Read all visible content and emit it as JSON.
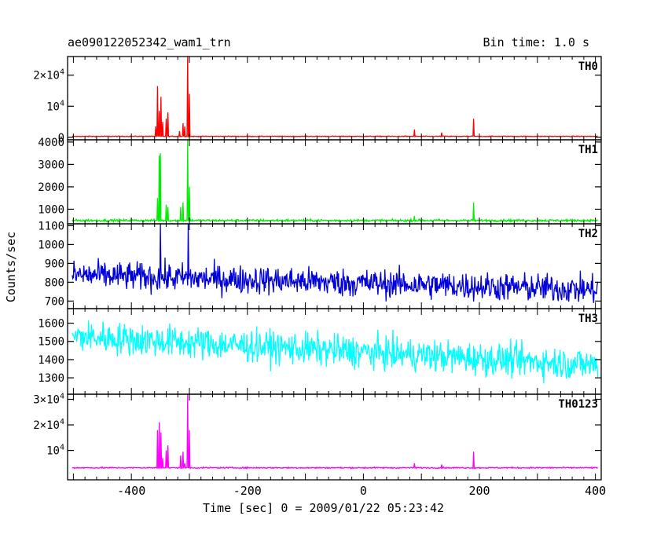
{
  "header": {
    "title": "ae090122052342_wam1_trn",
    "bin_time": "Bin time: 1.0 s"
  },
  "axes": {
    "xlabel": "Time [sec] 0 = 2009/01/22 05:23:42",
    "ylabel": "Counts/sec"
  },
  "chart_data": {
    "type": "line",
    "title": "ae090122052342_wam1_trn",
    "subtitle": "Bin time: 1.0 s",
    "xlabel": "Time [sec] 0 = 2009/01/22 05:23:42",
    "ylabel": "Counts/sec",
    "xlim": [
      -510,
      410
    ],
    "x_ticks": [
      -400,
      -200,
      0,
      200,
      400
    ],
    "legend": "none",
    "grid": false,
    "panels": [
      {
        "name": "TH0",
        "color": "#ff0000",
        "ylim": [
          -800,
          26000
        ],
        "ticks": [
          {
            "v": 0,
            "t": "0"
          },
          {
            "v": 10000,
            "t": "10^4"
          },
          {
            "v": 20000,
            "t": "2×10^4"
          }
        ],
        "baseline": 300,
        "noise": 60,
        "trend": 0,
        "spikes": [
          [
            -358,
            3500
          ],
          [
            -355,
            16500
          ],
          [
            -352,
            8500
          ],
          [
            -349,
            13000
          ],
          [
            -346,
            5000
          ],
          [
            -340,
            6000
          ],
          [
            -337,
            8000
          ],
          [
            -317,
            2000
          ],
          [
            -311,
            4500
          ],
          [
            -308,
            3500
          ],
          [
            -303,
            27000
          ],
          [
            -300,
            14000
          ],
          [
            88,
            2500
          ],
          [
            135,
            1500
          ],
          [
            190,
            6000
          ]
        ]
      },
      {
        "name": "TH1",
        "color": "#00ee00",
        "ylim": [
          350,
          4100
        ],
        "ticks": [
          {
            "v": 1000,
            "t": "1000"
          },
          {
            "v": 2000,
            "t": "2000"
          },
          {
            "v": 3000,
            "t": "3000"
          },
          {
            "v": 4000,
            "t": "4000"
          }
        ],
        "baseline": 500,
        "noise": 25,
        "trend": 0,
        "spikes": [
          [
            -355,
            1500
          ],
          [
            -352,
            3400
          ],
          [
            -350,
            3500
          ],
          [
            -340,
            1200
          ],
          [
            -337,
            1100
          ],
          [
            -315,
            1100
          ],
          [
            -311,
            1300
          ],
          [
            -303,
            4100
          ],
          [
            -300,
            2000
          ],
          [
            88,
            700
          ],
          [
            190,
            1300
          ]
        ]
      },
      {
        "name": "TH2",
        "color": "#0000dd",
        "ylim": [
          660,
          1110
        ],
        "ticks": [
          {
            "v": 700,
            "t": "700"
          },
          {
            "v": 800,
            "t": "800"
          },
          {
            "v": 900,
            "t": "900"
          },
          {
            "v": 1000,
            "t": "1000"
          },
          {
            "v": 1100,
            "t": "1100"
          }
        ],
        "baseline": 840,
        "noise": 38,
        "trend": -80,
        "spikes": [
          [
            -350,
            1110
          ],
          [
            -302,
            1110
          ]
        ]
      },
      {
        "name": "TH3",
        "color": "#00ffff",
        "ylim": [
          1210,
          1680
        ],
        "ticks": [
          {
            "v": 1300,
            "t": "1300"
          },
          {
            "v": 1400,
            "t": "1400"
          },
          {
            "v": 1500,
            "t": "1500"
          },
          {
            "v": 1600,
            "t": "1600"
          }
        ],
        "baseline": 1530,
        "noise": 45,
        "trend": -160,
        "spikes": []
      },
      {
        "name": "TH0123",
        "color": "#ff00ff",
        "ylim": [
          -1500,
          32000
        ],
        "ticks": [
          {
            "v": 10000,
            "t": "10^4"
          },
          {
            "v": 20000,
            "t": "2×10^4"
          },
          {
            "v": 30000,
            "t": "3×10^4"
          }
        ],
        "baseline": 3200,
        "noise": 120,
        "trend": 0,
        "spikes": [
          [
            -355,
            18000
          ],
          [
            -352,
            21000
          ],
          [
            -349,
            17000
          ],
          [
            -346,
            7000
          ],
          [
            -340,
            10000
          ],
          [
            -337,
            12000
          ],
          [
            -315,
            8000
          ],
          [
            -311,
            9500
          ],
          [
            -308,
            5000
          ],
          [
            -303,
            32000
          ],
          [
            -300,
            18000
          ],
          [
            88,
            5000
          ],
          [
            135,
            4500
          ],
          [
            190,
            9500
          ]
        ]
      }
    ]
  }
}
